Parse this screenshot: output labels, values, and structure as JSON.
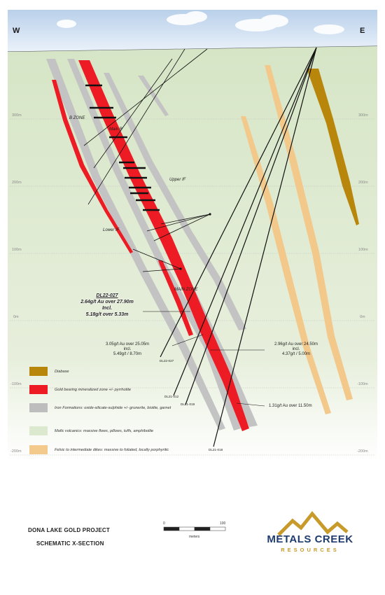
{
  "orientation": {
    "west": "W",
    "east": "E"
  },
  "elevations": {
    "left": [
      "300m",
      "200m",
      "100m",
      "0m",
      "-100m",
      "-200m"
    ],
    "right": [
      "300m",
      "200m",
      "100m",
      "0m",
      "-100m",
      "-200m"
    ]
  },
  "zone_labels": {
    "b_zone": "B ZONE",
    "main_b": "Main B",
    "upper_if": "Upper IF",
    "lower_if": "Lower IF",
    "main_zone": "MAIN ZONE"
  },
  "key_intercept": {
    "hole": "DL22-027",
    "line1": "2.64g/t Au over 27.90m",
    "line2": "Incl.",
    "line3": "5.18g/t over 5.33m"
  },
  "intercepts": {
    "left_a": "3.05g/t Au over 25.05m",
    "left_b": "incl.",
    "left_c": "5.49g/t / 8.70m",
    "right_a": "2.96g/t Au over 24.50m",
    "right_b": "incl.",
    "right_c": "4.37g/t / 5.00m",
    "lower": "1.31g/t Au over 11.50m"
  },
  "holes": [
    "DL22-027",
    "DL21-012",
    "DL21-019",
    "DL21-018"
  ],
  "legend": [
    {
      "label": "Diabase",
      "color": "#b8860b"
    },
    {
      "label": "Gold bearing mineralized zone +/- pyrrhotite",
      "color": "#ed1c24"
    },
    {
      "label": "Iron Formations: oxide-silicate-sulphide +/- grunerite, biotite, garnet",
      "color": "#bdbdbd"
    },
    {
      "label": "Mafic volcanics: massive flows, pillows, tuffs, amphibolite",
      "color": "#dde9cf"
    },
    {
      "label": "Felsic to intermediate dikes: massive to foliated, locally porphyritic",
      "color": "#f4c98c"
    }
  ],
  "title": {
    "project": "DONA LAKE GOLD PROJECT",
    "subtitle": "SCHEMATIC X-SECTION"
  },
  "scale_bar": {
    "start": "0",
    "end": "100",
    "unit": "meters"
  },
  "logo": {
    "name": "METALS CREEK",
    "sub": "RESOURCES",
    "colors": {
      "navy": "#1f3b6e",
      "gold": "#c79a2a"
    }
  }
}
